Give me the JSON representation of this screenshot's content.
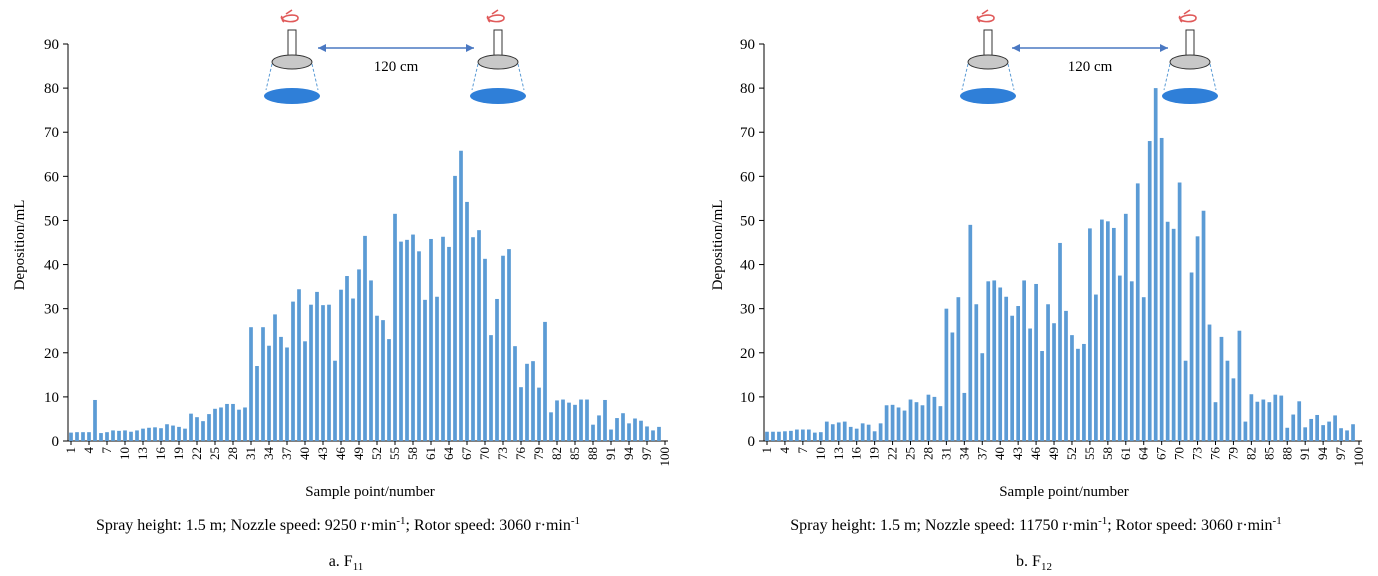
{
  "chart_data": [
    {
      "type": "bar",
      "ylabel": "Deposition/mL",
      "xlabel": "Sample point/number",
      "ylim": [
        0,
        90
      ],
      "yticks": [
        0,
        10,
        20,
        30,
        40,
        50,
        60,
        70,
        80,
        90
      ],
      "xtick_labels": [
        "1",
        "4",
        "7",
        "10",
        "13",
        "16",
        "19",
        "22",
        "25",
        "28",
        "31",
        "34",
        "37",
        "40",
        "43",
        "46",
        "49",
        "52",
        "55",
        "58",
        "61",
        "64",
        "67",
        "70",
        "73",
        "76",
        "79",
        "82",
        "85",
        "88",
        "91",
        "94",
        "97",
        "100"
      ],
      "bar_color": "#5b9bd5",
      "annotation": {
        "distance_label": "120 cm"
      },
      "caption": "Spray height: 1.5 m; Nozzle speed: 9250 r·min",
      "caption_sup": "-1",
      "caption_mid": "; Rotor speed: 3060 r·min",
      "caption_sup2": "-1",
      "sublabel_prefix": "a. F",
      "sublabel_sub": "11",
      "x": [
        1,
        2,
        3,
        4,
        5,
        6,
        7,
        8,
        9,
        10,
        11,
        12,
        13,
        14,
        15,
        16,
        17,
        18,
        19,
        20,
        21,
        22,
        23,
        24,
        25,
        26,
        27,
        28,
        29,
        30,
        31,
        32,
        33,
        34,
        35,
        36,
        37,
        38,
        39,
        40,
        41,
        42,
        43,
        44,
        45,
        46,
        47,
        48,
        49,
        50,
        51,
        52,
        53,
        54,
        55,
        56,
        57,
        58,
        59,
        60,
        61,
        62,
        63,
        64,
        65,
        66,
        67,
        68,
        69,
        70,
        71,
        72,
        73,
        74,
        75,
        76,
        77,
        78,
        79,
        80,
        81,
        82,
        83,
        84,
        85,
        86,
        87,
        88,
        89,
        90,
        91,
        92,
        93,
        94,
        95,
        96,
        97,
        98,
        99,
        100
      ],
      "values": [
        1.9,
        2,
        2,
        2,
        9.3,
        1.8,
        2,
        2.4,
        2.3,
        2.4,
        2.1,
        2.4,
        2.8,
        3,
        3.1,
        2.9,
        3.8,
        3.5,
        3.2,
        2.8,
        6.2,
        5.4,
        4.5,
        6.1,
        7.3,
        7.6,
        8.4,
        8.4,
        7.1,
        7.6,
        25.8,
        17,
        25.8,
        21.6,
        28.7,
        23.6,
        21.2,
        31.6,
        34.4,
        22.6,
        30.9,
        33.8,
        30.8,
        30.9,
        18.2,
        34.3,
        37.4,
        32.3,
        38.9,
        46.5,
        36.4,
        28.4,
        27.4,
        23.1,
        51.5,
        45.2,
        45.6,
        46.8,
        43,
        32,
        45.8,
        32.7,
        46.3,
        44,
        60.1,
        65.8,
        54.2,
        46.2,
        47.8,
        41.3,
        24,
        32.2,
        42,
        43.5,
        21.5,
        12.2,
        17.5,
        18.1,
        12.1,
        27,
        6.5,
        9.2,
        9.4,
        8.7,
        8.2,
        9.4,
        9.4,
        3.7,
        5.8,
        9.3,
        2.6,
        5.2,
        6.3,
        4,
        5.1,
        4.6,
        3.3,
        2.4,
        3.2,
        0
      ]
    },
    {
      "type": "bar",
      "ylabel": "Deposition/mL",
      "xlabel": "Sample point/number",
      "ylim": [
        0,
        90
      ],
      "yticks": [
        0,
        10,
        20,
        30,
        40,
        50,
        60,
        70,
        80,
        90
      ],
      "xtick_labels": [
        "1",
        "4",
        "7",
        "10",
        "13",
        "16",
        "19",
        "22",
        "25",
        "28",
        "31",
        "34",
        "37",
        "40",
        "43",
        "46",
        "49",
        "52",
        "55",
        "58",
        "61",
        "64",
        "67",
        "70",
        "73",
        "76",
        "79",
        "82",
        "85",
        "88",
        "91",
        "94",
        "97",
        "100"
      ],
      "bar_color": "#5b9bd5",
      "annotation": {
        "distance_label": "120 cm"
      },
      "caption": "Spray height: 1.5 m; Nozzle speed: 11750 r·min",
      "caption_sup": "-1",
      "caption_mid": "; Rotor speed: 3060 r·min",
      "caption_sup2": "-1",
      "sublabel_prefix": "b. F",
      "sublabel_sub": "12",
      "x": [
        1,
        2,
        3,
        4,
        5,
        6,
        7,
        8,
        9,
        10,
        11,
        12,
        13,
        14,
        15,
        16,
        17,
        18,
        19,
        20,
        21,
        22,
        23,
        24,
        25,
        26,
        27,
        28,
        29,
        30,
        31,
        32,
        33,
        34,
        35,
        36,
        37,
        38,
        39,
        40,
        41,
        42,
        43,
        44,
        45,
        46,
        47,
        48,
        49,
        50,
        51,
        52,
        53,
        54,
        55,
        56,
        57,
        58,
        59,
        60,
        61,
        62,
        63,
        64,
        65,
        66,
        67,
        68,
        69,
        70,
        71,
        72,
        73,
        74,
        75,
        76,
        77,
        78,
        79,
        80,
        81,
        82,
        83,
        84,
        85,
        86,
        87,
        88,
        89,
        90,
        91,
        92,
        93,
        94,
        95,
        96,
        97,
        98,
        99,
        100
      ],
      "values": [
        2.1,
        2.1,
        2.1,
        2.2,
        2.3,
        2.6,
        2.6,
        2.6,
        1.9,
        2,
        4.4,
        3.8,
        4.2,
        4.4,
        3.2,
        2.8,
        4,
        3.7,
        2.2,
        4,
        8.1,
        8.2,
        7.6,
        6.9,
        9.4,
        8.8,
        8.1,
        10.5,
        10,
        7.9,
        30,
        24.6,
        32.6,
        10.9,
        49,
        31,
        19.9,
        36.2,
        36.4,
        34.8,
        32.7,
        28.4,
        30.6,
        36.4,
        25.5,
        35.6,
        20.4,
        31,
        26.7,
        44.9,
        29.5,
        24,
        20.9,
        22,
        48.2,
        33.2,
        50.2,
        49.8,
        48.3,
        37.5,
        51.5,
        36.2,
        58.4,
        32.6,
        68,
        80,
        68.7,
        49.7,
        48.1,
        58.6,
        18.2,
        38.2,
        46.4,
        52.2,
        26.4,
        8.8,
        23.6,
        18.2,
        14.2,
        25,
        4.4,
        10.6,
        8.9,
        9.4,
        8.8,
        10.5,
        10.3,
        3,
        6,
        9,
        3.1,
        5,
        5.9,
        3.6,
        4.4,
        5.8,
        2.9,
        2.4,
        3.8,
        0
      ]
    }
  ]
}
